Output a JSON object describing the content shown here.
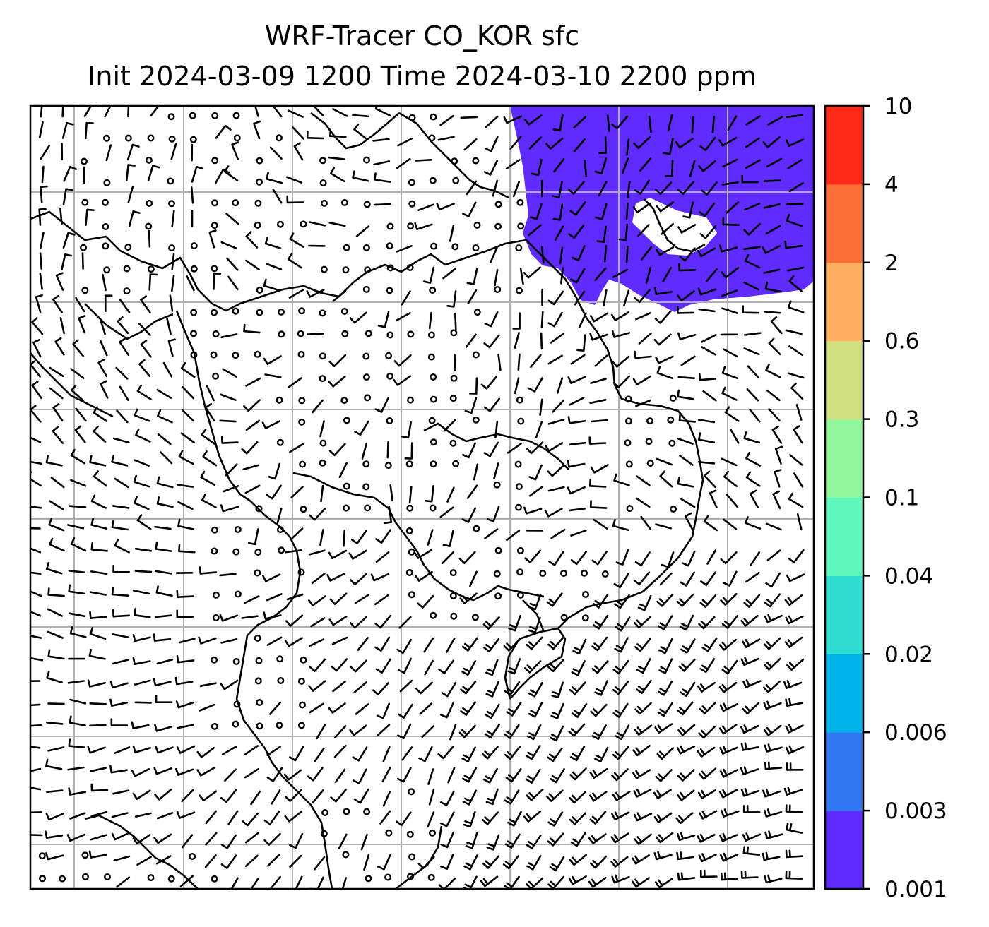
{
  "title": {
    "line1": "WRF-Tracer CO_KOR sfc",
    "line2": "Init 2024-03-09 1200 Time 2024-03-10 2200 ppm"
  },
  "map": {
    "type": "filled-contour map with wind barbs",
    "gridlines": true,
    "concentration_region_color": "#5f2bff",
    "coastline_color": "#000000",
    "gridline_color": "#b0b0b0"
  },
  "colorbar": {
    "tick_labels": [
      "0.001",
      "0.003",
      "0.006",
      "0.02",
      "0.04",
      "0.1",
      "0.3",
      "0.6",
      "2",
      "4",
      "10"
    ],
    "colors": [
      "#5f2bff",
      "#3078f2",
      "#00b2ea",
      "#2fdcd0",
      "#5ff7be",
      "#92f79c",
      "#d0e07e",
      "#ffad5e",
      "#ff7039",
      "#ff2a17"
    ]
  }
}
